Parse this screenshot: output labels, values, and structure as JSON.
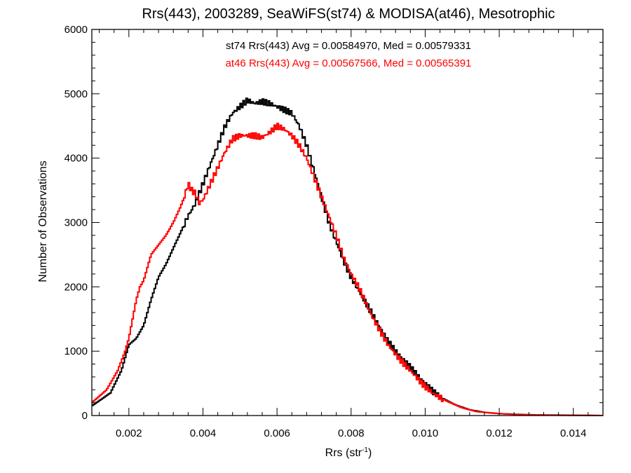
{
  "chart_data": {
    "type": "line",
    "step": true,
    "title": "Rrs(443), 2003289, SeaWiFS(st74) & MODISA(at46), Mesotrophic",
    "xlabel": "Rrs (str",
    "xlabel_sup": "-1",
    "xlabel_close": ")",
    "ylabel": "Number of Observations",
    "xlim": [
      0.001,
      0.0148
    ],
    "ylim": [
      0,
      6000
    ],
    "xticks": [
      "0.002",
      "0.004",
      "0.006",
      "0.008",
      "0.010",
      "0.012",
      "0.014"
    ],
    "yticks": [
      "0",
      "1000",
      "2000",
      "3000",
      "4000",
      "5000",
      "6000"
    ],
    "grid": false,
    "annotations": [
      {
        "text": "st74 Rrs(443) Avg = 0.00584970, Med = 0.00579331",
        "color": "#000000"
      },
      {
        "text": "at46 Rrs(443) Avg = 0.00567566, Med = 0.00565391",
        "color": "#ff0000"
      }
    ],
    "series": [
      {
        "color": "#000000",
        "points": [
          [
            0.001,
            150
          ],
          [
            0.0015,
            350
          ],
          [
            0.0018,
            700
          ],
          [
            0.002,
            1100
          ],
          [
            0.0022,
            1200
          ],
          [
            0.0024,
            1400
          ],
          [
            0.0026,
            1800
          ],
          [
            0.0028,
            2150
          ],
          [
            0.003,
            2350
          ],
          [
            0.0032,
            2600
          ],
          [
            0.0034,
            2850
          ],
          [
            0.0036,
            3100
          ],
          [
            0.0038,
            3300
          ],
          [
            0.004,
            3600
          ],
          [
            0.0042,
            3900
          ],
          [
            0.0044,
            4200
          ],
          [
            0.0046,
            4500
          ],
          [
            0.0048,
            4700
          ],
          [
            0.005,
            4800
          ],
          [
            0.0052,
            4900
          ],
          [
            0.0054,
            4850
          ],
          [
            0.0056,
            4880
          ],
          [
            0.0058,
            4850
          ],
          [
            0.006,
            4800
          ],
          [
            0.0062,
            4750
          ],
          [
            0.0064,
            4700
          ],
          [
            0.0066,
            4500
          ],
          [
            0.0068,
            4200
          ],
          [
            0.007,
            3800
          ],
          [
            0.0072,
            3400
          ],
          [
            0.0074,
            3000
          ],
          [
            0.0076,
            2700
          ],
          [
            0.0078,
            2400
          ],
          [
            0.008,
            2150
          ],
          [
            0.0082,
            1950
          ],
          [
            0.0084,
            1750
          ],
          [
            0.0086,
            1550
          ],
          [
            0.0088,
            1350
          ],
          [
            0.009,
            1150
          ],
          [
            0.0092,
            1000
          ],
          [
            0.0094,
            880
          ],
          [
            0.0096,
            750
          ],
          [
            0.0098,
            620
          ],
          [
            0.01,
            500
          ],
          [
            0.0102,
            380
          ],
          [
            0.0104,
            290
          ],
          [
            0.0106,
            230
          ],
          [
            0.0108,
            170
          ],
          [
            0.011,
            130
          ],
          [
            0.0112,
            90
          ],
          [
            0.0114,
            70
          ],
          [
            0.0116,
            50
          ],
          [
            0.012,
            30
          ],
          [
            0.0124,
            20
          ],
          [
            0.013,
            10
          ],
          [
            0.014,
            5
          ],
          [
            0.0148,
            0
          ]
        ]
      },
      {
        "color": "#ff0000",
        "points": [
          [
            0.001,
            200
          ],
          [
            0.0014,
            400
          ],
          [
            0.0017,
            700
          ],
          [
            0.0019,
            1000
          ],
          [
            0.002,
            1200
          ],
          [
            0.0021,
            1500
          ],
          [
            0.0022,
            1800
          ],
          [
            0.0023,
            2000
          ],
          [
            0.0024,
            2100
          ],
          [
            0.0025,
            2300
          ],
          [
            0.0026,
            2500
          ],
          [
            0.0028,
            2650
          ],
          [
            0.003,
            2800
          ],
          [
            0.0032,
            3000
          ],
          [
            0.0034,
            3250
          ],
          [
            0.0035,
            3400
          ],
          [
            0.0036,
            3600
          ],
          [
            0.0037,
            3500
          ],
          [
            0.0038,
            3450
          ],
          [
            0.0039,
            3300
          ],
          [
            0.004,
            3350
          ],
          [
            0.0042,
            3600
          ],
          [
            0.0044,
            3850
          ],
          [
            0.0046,
            4100
          ],
          [
            0.0048,
            4300
          ],
          [
            0.005,
            4350
          ],
          [
            0.0052,
            4350
          ],
          [
            0.0054,
            4350
          ],
          [
            0.0056,
            4320
          ],
          [
            0.0058,
            4400
          ],
          [
            0.006,
            4500
          ],
          [
            0.0062,
            4450
          ],
          [
            0.0064,
            4350
          ],
          [
            0.0066,
            4200
          ],
          [
            0.0068,
            4000
          ],
          [
            0.007,
            3700
          ],
          [
            0.0072,
            3400
          ],
          [
            0.0074,
            3100
          ],
          [
            0.0076,
            2800
          ],
          [
            0.0078,
            2450
          ],
          [
            0.008,
            2200
          ],
          [
            0.0082,
            2000
          ],
          [
            0.0084,
            1750
          ],
          [
            0.0086,
            1500
          ],
          [
            0.0088,
            1300
          ],
          [
            0.009,
            1100
          ],
          [
            0.0092,
            950
          ],
          [
            0.0094,
            820
          ],
          [
            0.0096,
            700
          ],
          [
            0.0098,
            570
          ],
          [
            0.01,
            450
          ],
          [
            0.0102,
            350
          ],
          [
            0.0104,
            280
          ],
          [
            0.0106,
            220
          ],
          [
            0.0108,
            170
          ],
          [
            0.011,
            120
          ],
          [
            0.0112,
            90
          ],
          [
            0.0114,
            60
          ],
          [
            0.012,
            30
          ],
          [
            0.0125,
            15
          ],
          [
            0.013,
            8
          ],
          [
            0.014,
            3
          ],
          [
            0.0148,
            0
          ]
        ]
      }
    ]
  }
}
